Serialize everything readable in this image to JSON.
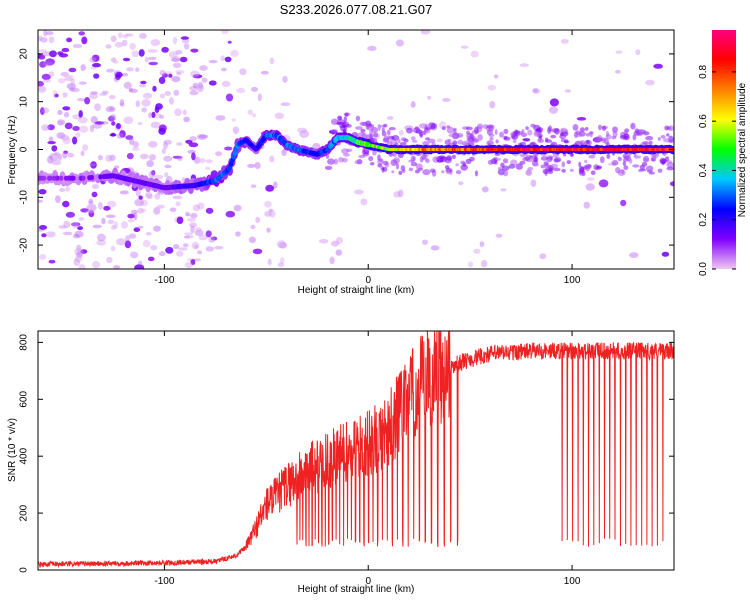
{
  "title": "S233.2026.077.08.21.G07",
  "chart_data": [
    {
      "type": "heatmap",
      "xlabel": "Height of straight line (km)",
      "ylabel": "Frequency (Hz)",
      "xlim": [
        -162,
        150
      ],
      "ylim": [
        -25,
        25
      ],
      "xticks": [
        -100,
        0,
        100
      ],
      "yticks": [
        -20,
        -10,
        0,
        10,
        20
      ],
      "colorbar": {
        "label": "Normalized spectral amplitude",
        "range": [
          0,
          0.97
        ],
        "ticks": [
          0.0,
          0.2,
          0.4,
          0.6,
          0.8
        ],
        "colors": [
          "#f0c8f0",
          "#8000ff",
          "#0000ff",
          "#00c8ff",
          "#00ff00",
          "#ffff00",
          "#ff8000",
          "#ff0000",
          "#ff0080"
        ]
      },
      "ridge": {
        "x": [
          -162,
          -140,
          -125,
          -115,
          -100,
          -85,
          -75,
          -68,
          -64,
          -60,
          -55,
          -50,
          -45,
          -40,
          -35,
          -30,
          -25,
          -20,
          -15,
          -10,
          -5,
          0,
          10,
          20,
          40,
          60,
          80,
          100,
          120,
          150
        ],
        "frequency": [
          -6,
          -6,
          -5.5,
          -6.5,
          -8,
          -7.5,
          -6.5,
          -4,
          1,
          2,
          0,
          3,
          3,
          1,
          0,
          -0.5,
          -1,
          0,
          2.5,
          2.5,
          1.5,
          1,
          0,
          0,
          0,
          0,
          0,
          0,
          0,
          0
        ],
        "amplitude": [
          0.1,
          0.12,
          0.15,
          0.15,
          0.15,
          0.2,
          0.3,
          0.3,
          0.3,
          0.25,
          0.2,
          0.3,
          0.3,
          0.3,
          0.3,
          0.25,
          0.25,
          0.3,
          0.35,
          0.4,
          0.5,
          0.55,
          0.6,
          0.7,
          0.8,
          0.85,
          0.9,
          0.9,
          0.9,
          0.9
        ]
      }
    },
    {
      "type": "line",
      "xlabel": "Height of straight line (km)",
      "ylabel": "SNR (10 * v/v)",
      "xlim": [
        -162,
        150
      ],
      "ylim": [
        0,
        840
      ],
      "xticks": [
        -100,
        0,
        100
      ],
      "yticks": [
        0,
        200,
        400,
        600,
        800
      ],
      "series_color": "#ee2222",
      "envelope": {
        "x": [
          -162,
          -100,
          -75,
          -65,
          -60,
          -55,
          -50,
          -45,
          -40,
          -35,
          -30,
          -20,
          -10,
          0,
          10,
          20,
          30,
          35,
          40,
          45,
          50,
          60,
          80,
          100,
          120,
          150
        ],
        "snr": [
          20,
          25,
          30,
          50,
          80,
          150,
          230,
          260,
          300,
          320,
          350,
          380,
          420,
          440,
          500,
          600,
          680,
          700,
          710,
          730,
          740,
          760,
          770,
          770,
          770,
          770
        ]
      },
      "dropouts": {
        "x_range_dense": [
          -35,
          45
        ],
        "x_range_sparse": [
          95,
          145
        ],
        "floor_snr": 80
      }
    }
  ]
}
